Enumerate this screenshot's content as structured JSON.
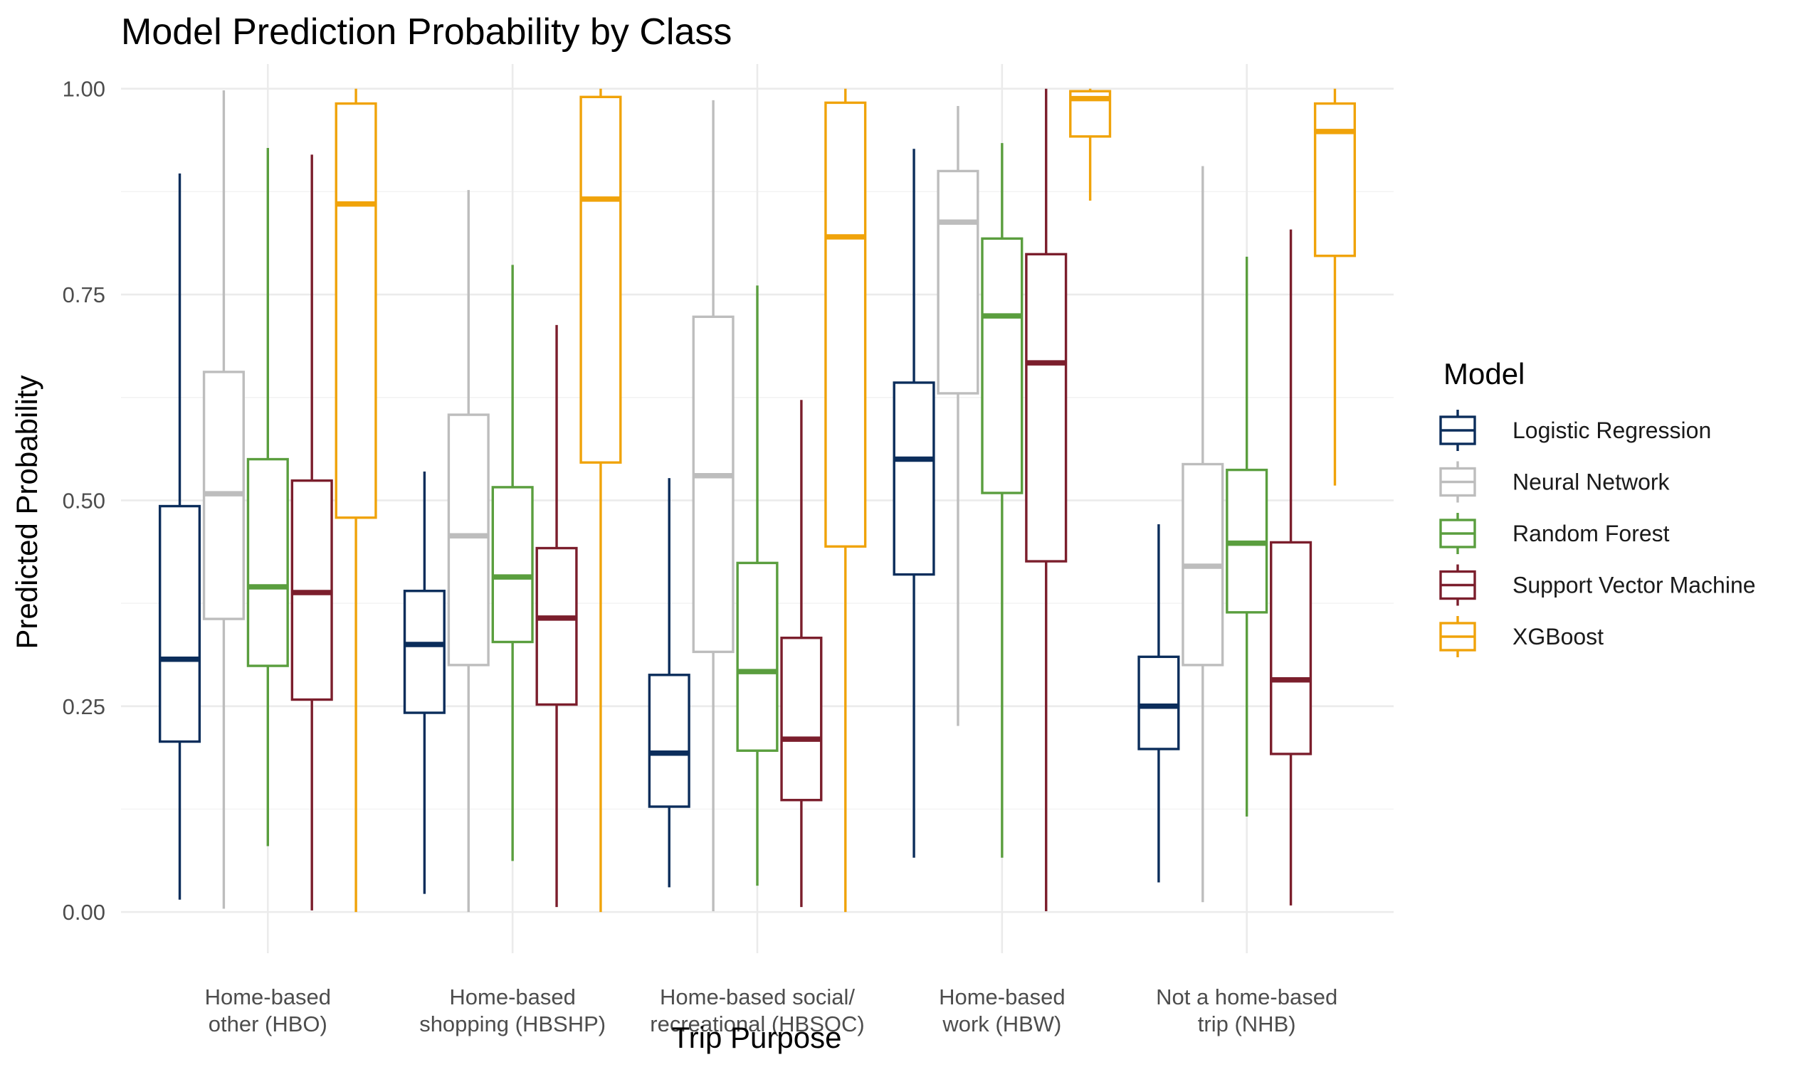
{
  "chart_data": {
    "type": "boxplot",
    "title": "Model Prediction Probability by Class",
    "xlabel": "Trip Purpose",
    "ylabel": "Predicted Probability",
    "ylim": [
      -0.05,
      1.03
    ],
    "yticks": [
      "0.00",
      "0.25",
      "0.50",
      "0.75",
      "1.00"
    ],
    "grid": true,
    "legend_title": "Model",
    "legend_position": "right",
    "categories": [
      [
        "Home-based",
        "other (HBO)"
      ],
      [
        "Home-based",
        "shopping (HBSHP)"
      ],
      [
        "Home-based social/",
        "recreational (HBSOC)"
      ],
      [
        "Home-based",
        "work (HBW)"
      ],
      [
        "Not a home-based",
        "trip (NHB)"
      ]
    ],
    "series": [
      {
        "name": "Logistic Regression",
        "color": "#0b2d5b",
        "boxes": [
          {
            "min": 0.015,
            "q1": 0.207,
            "median": 0.307,
            "q3": 0.493,
            "max": 0.897
          },
          {
            "min": 0.022,
            "q1": 0.242,
            "median": 0.325,
            "q3": 0.39,
            "max": 0.535
          },
          {
            "min": 0.03,
            "q1": 0.128,
            "median": 0.193,
            "q3": 0.288,
            "max": 0.527
          },
          {
            "min": 0.066,
            "q1": 0.41,
            "median": 0.55,
            "q3": 0.643,
            "max": 0.927
          },
          {
            "min": 0.036,
            "q1": 0.198,
            "median": 0.25,
            "q3": 0.31,
            "max": 0.471
          }
        ]
      },
      {
        "name": "Neural Network",
        "color": "#bdbdbd",
        "boxes": [
          {
            "min": 0.004,
            "q1": 0.356,
            "median": 0.508,
            "q3": 0.656,
            "max": 0.998
          },
          {
            "min": 0.0,
            "q1": 0.3,
            "median": 0.457,
            "q3": 0.604,
            "max": 0.877
          },
          {
            "min": 0.001,
            "q1": 0.316,
            "median": 0.53,
            "q3": 0.723,
            "max": 0.986
          },
          {
            "min": 0.226,
            "q1": 0.63,
            "median": 0.838,
            "q3": 0.9,
            "max": 0.979
          },
          {
            "min": 0.012,
            "q1": 0.3,
            "median": 0.42,
            "q3": 0.544,
            "max": 0.906
          }
        ]
      },
      {
        "name": "Random Forest",
        "color": "#5a9e3e",
        "boxes": [
          {
            "min": 0.08,
            "q1": 0.299,
            "median": 0.395,
            "q3": 0.55,
            "max": 0.928
          },
          {
            "min": 0.062,
            "q1": 0.328,
            "median": 0.407,
            "q3": 0.516,
            "max": 0.786
          },
          {
            "min": 0.032,
            "q1": 0.196,
            "median": 0.292,
            "q3": 0.424,
            "max": 0.761
          },
          {
            "min": 0.066,
            "q1": 0.509,
            "median": 0.724,
            "q3": 0.818,
            "max": 0.934
          },
          {
            "min": 0.116,
            "q1": 0.364,
            "median": 0.448,
            "q3": 0.537,
            "max": 0.796
          }
        ]
      },
      {
        "name": "Support Vector Machine",
        "color": "#7b1e2c",
        "boxes": [
          {
            "min": 0.002,
            "q1": 0.258,
            "median": 0.388,
            "q3": 0.524,
            "max": 0.92
          },
          {
            "min": 0.006,
            "q1": 0.252,
            "median": 0.357,
            "q3": 0.442,
            "max": 0.713
          },
          {
            "min": 0.006,
            "q1": 0.136,
            "median": 0.21,
            "q3": 0.333,
            "max": 0.622
          },
          {
            "min": 0.001,
            "q1": 0.426,
            "median": 0.667,
            "q3": 0.799,
            "max": 1.0
          },
          {
            "min": 0.008,
            "q1": 0.192,
            "median": 0.282,
            "q3": 0.449,
            "max": 0.829
          }
        ]
      },
      {
        "name": "XGBoost",
        "color": "#f0a30a",
        "boxes": [
          {
            "min": 0.0,
            "q1": 0.479,
            "median": 0.86,
            "q3": 0.982,
            "max": 1.0
          },
          {
            "min": 0.0,
            "q1": 0.546,
            "median": 0.866,
            "q3": 0.99,
            "max": 1.0
          },
          {
            "min": 0.0,
            "q1": 0.444,
            "median": 0.82,
            "q3": 0.983,
            "max": 1.0
          },
          {
            "min": 0.864,
            "q1": 0.942,
            "median": 0.988,
            "q3": 0.997,
            "max": 1.0
          },
          {
            "min": 0.518,
            "q1": 0.797,
            "median": 0.948,
            "q3": 0.982,
            "max": 1.0
          }
        ]
      }
    ]
  }
}
